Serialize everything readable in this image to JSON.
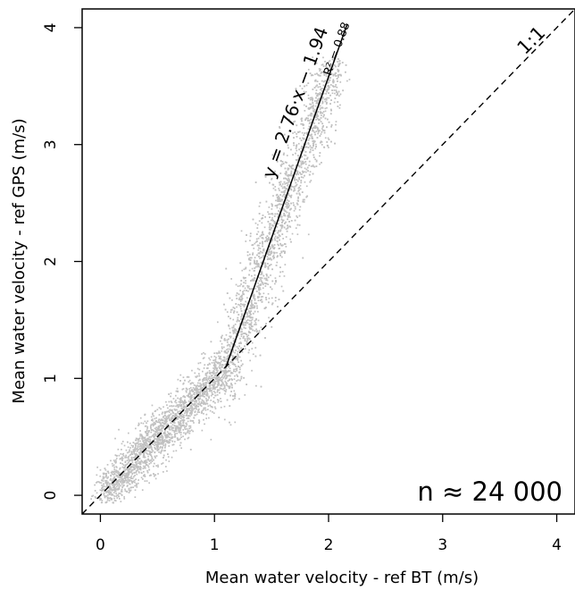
{
  "chart_data": {
    "type": "scatter",
    "xlabel": "Mean water velocity - ref BT (m/s)",
    "ylabel": "Mean water velocity - ref GPS (m/s)",
    "xlim": [
      -0.16,
      4.16
    ],
    "ylim": [
      -0.16,
      4.16
    ],
    "xticks": [
      0,
      1,
      2,
      3,
      4
    ],
    "yticks": [
      0,
      1,
      2,
      3,
      4
    ],
    "tick_labels_x": [
      "0",
      "1",
      "2",
      "3",
      "4"
    ],
    "tick_labels_y": [
      "0",
      "1",
      "2",
      "3",
      "4"
    ],
    "grid": false,
    "point_color": "#c0c0c0",
    "n_label": "n ≈ 24 000",
    "point_clusters": [
      {
        "x_range": [
          0.0,
          1.1
        ],
        "y_center_slope": 1.0,
        "y_intercept": 0.0,
        "spread": 0.12,
        "share": 0.45
      },
      {
        "x_range": [
          1.1,
          2.1
        ],
        "y_center_slope": 2.76,
        "y_intercept": -1.94,
        "spread": 0.25,
        "share": 0.55
      }
    ],
    "series": [
      {
        "kind": "regression_line",
        "equation_label": "y = 2.76·x − 1.94",
        "r2_label": "R² = 0.88",
        "slope": 2.76,
        "intercept": -1.94,
        "x_start": 1.1,
        "x_end": 2.16
      },
      {
        "kind": "identity_line",
        "label": "1:1",
        "slope": 1,
        "intercept": 0,
        "line_style": "dashed"
      }
    ]
  }
}
